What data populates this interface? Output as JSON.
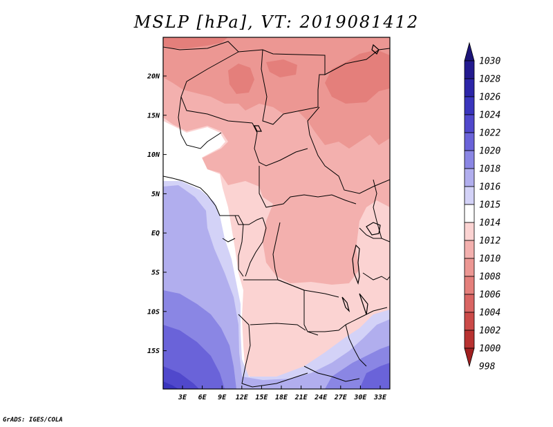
{
  "title": "MSLP [hPa], VT: 2019081412",
  "footer": "GrADS: IGES/COLA",
  "lat_labels": [
    "20N",
    "15N",
    "10N",
    "5N",
    "EQ",
    "5S",
    "10S",
    "15S"
  ],
  "lon_labels": [
    "3E",
    "6E",
    "9E",
    "12E",
    "15E",
    "18E",
    "21E",
    "24E",
    "27E",
    "30E",
    "33E"
  ],
  "colorbar": {
    "levels": [
      {
        "label": "1030",
        "color": "#1c1478"
      },
      {
        "label": "1028",
        "color": "#231a8f"
      },
      {
        "label": "1026",
        "color": "#2c25a8"
      },
      {
        "label": "1024",
        "color": "#3a35bd"
      },
      {
        "label": "1022",
        "color": "#5048cc"
      },
      {
        "label": "1020",
        "color": "#6a63d9"
      },
      {
        "label": "1018",
        "color": "#8a86e4"
      },
      {
        "label": "1016",
        "color": "#b1aeee"
      },
      {
        "label": "1015",
        "color": "#d3d2f7"
      },
      {
        "label": "1014",
        "color": "#ffffff"
      },
      {
        "label": "1012",
        "color": "#fbd3d2"
      },
      {
        "label": "1010",
        "color": "#f3b0ae"
      },
      {
        "label": "1008",
        "color": "#ec9793"
      },
      {
        "label": "1006",
        "color": "#e47f7b"
      },
      {
        "label": "1004",
        "color": "#d96563"
      },
      {
        "label": "1002",
        "color": "#cb4a48"
      },
      {
        "label": "1000",
        "color": "#b83231"
      },
      {
        "label": "998",
        "color": "#a02020"
      }
    ]
  }
}
